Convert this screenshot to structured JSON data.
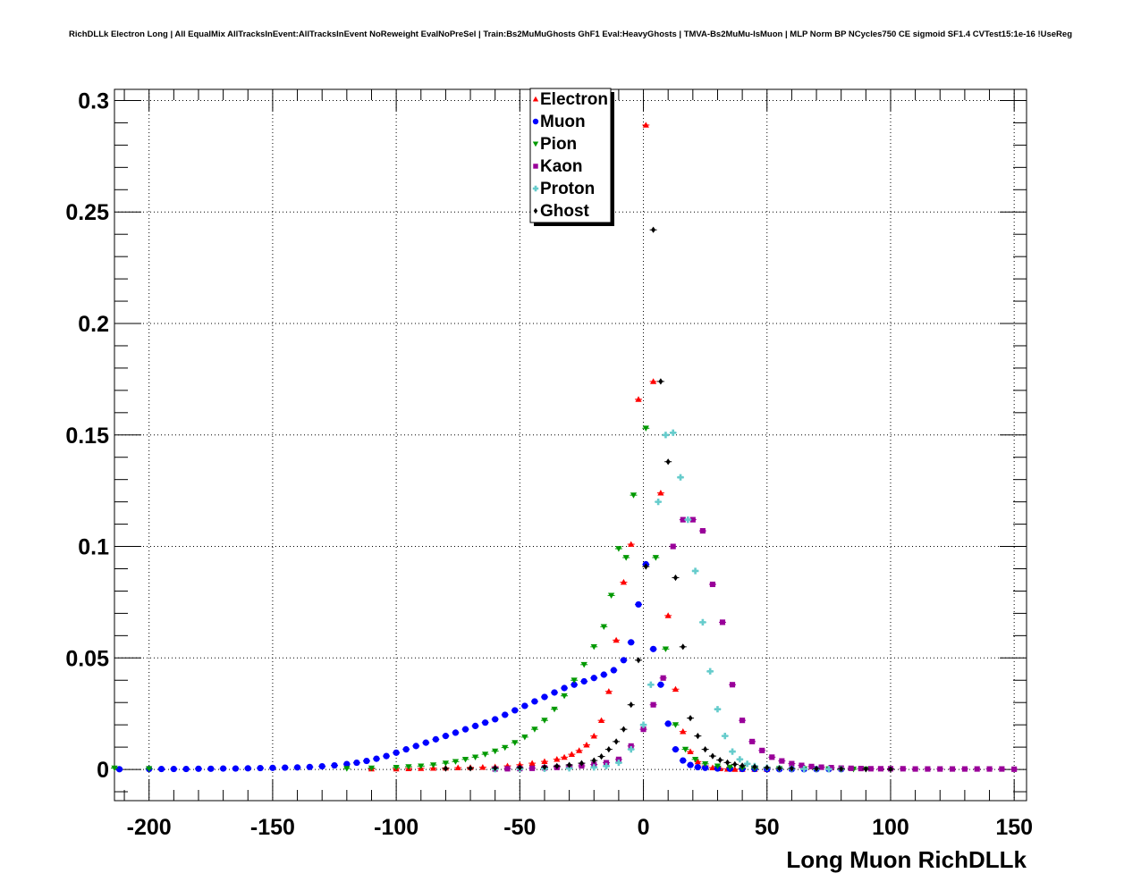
{
  "chart_data": {
    "type": "scatter",
    "title": "RichDLLk Electron Long | All EqualMix AllTracksInEvent:AllTracksInEvent NoReweight EvalNoPreSel | Train:Bs2MuMuGhosts GhF1 Eval:HeavyGhosts | TMVA-Bs2MuMu-IsMuon | MLP Norm BP NCycles750 CE sigmoid SF1.4 CVTest15:1e-16 !UseReg",
    "xlabel": "Long Muon RichDLLk",
    "ylabel": "",
    "xlim": [
      -214,
      155
    ],
    "ylim": [
      -0.014,
      0.305
    ],
    "grid": true,
    "legend_position": "top-center",
    "x_ticks": [
      -200,
      -150,
      -100,
      -50,
      0,
      50,
      100,
      150
    ],
    "x_tick_labels": [
      "-200",
      "-150",
      "-100",
      "-50",
      "0",
      "50",
      "100",
      "150"
    ],
    "y_ticks": [
      0,
      0.05,
      0.1,
      0.15,
      0.2,
      0.25,
      0.3
    ],
    "y_tick_labels": [
      "0",
      "0.05",
      "0.1",
      "0.15",
      "0.2",
      "0.25",
      "0.3"
    ],
    "series": [
      {
        "name": "Electron",
        "color": "#ff0000",
        "marker": "triangle-up",
        "x": [
          -110,
          -100,
          -95,
          -90,
          -85,
          -80,
          -75,
          -70,
          -65,
          -60,
          -55,
          -50,
          -45,
          -40,
          -35,
          -32,
          -29,
          -26,
          -23,
          -20,
          -17,
          -14,
          -11,
          -8,
          -5,
          -2,
          1,
          4,
          7,
          10,
          13,
          16,
          19,
          22,
          25,
          28,
          31,
          34,
          37,
          40,
          45,
          50
        ],
        "y": [
          0.0003,
          0.0003,
          0.0004,
          0.0005,
          0.0006,
          0.0007,
          0.0008,
          0.0009,
          0.001,
          0.0012,
          0.0016,
          0.0021,
          0.0028,
          0.0036,
          0.0046,
          0.0055,
          0.0068,
          0.0085,
          0.011,
          0.015,
          0.022,
          0.035,
          0.058,
          0.084,
          0.101,
          0.166,
          0.289,
          0.174,
          0.124,
          0.069,
          0.036,
          0.017,
          0.008,
          0.0035,
          0.0016,
          0.0008,
          0.0004,
          0.0002,
          0.0001,
          0.0001,
          0.0001,
          0.0001
        ]
      },
      {
        "name": "Muon",
        "color": "#0000ff",
        "marker": "circle",
        "x": [
          -212,
          -200,
          -195,
          -190,
          -185,
          -180,
          -175,
          -170,
          -165,
          -160,
          -155,
          -150,
          -145,
          -140,
          -135,
          -130,
          -125,
          -120,
          -116,
          -112,
          -108,
          -104,
          -100,
          -96,
          -92,
          -88,
          -84,
          -80,
          -76,
          -72,
          -68,
          -64,
          -60,
          -56,
          -52,
          -48,
          -44,
          -40,
          -36,
          -32,
          -28,
          -24,
          -20,
          -16,
          -12,
          -8,
          -5,
          -2,
          1,
          4,
          7,
          10,
          13,
          16,
          19,
          22,
          25,
          30,
          35,
          40,
          45,
          50,
          55,
          60,
          65,
          70,
          75,
          80
        ],
        "y": [
          0.0001,
          0.0002,
          0.0002,
          0.0002,
          0.0002,
          0.0003,
          0.0003,
          0.0004,
          0.0004,
          0.0005,
          0.0006,
          0.0007,
          0.0008,
          0.0009,
          0.0011,
          0.0014,
          0.0018,
          0.0024,
          0.003,
          0.0038,
          0.0048,
          0.006,
          0.0075,
          0.009,
          0.0105,
          0.012,
          0.0135,
          0.015,
          0.0165,
          0.018,
          0.0195,
          0.021,
          0.0225,
          0.0245,
          0.0265,
          0.0285,
          0.0305,
          0.0325,
          0.0345,
          0.0365,
          0.038,
          0.0395,
          0.041,
          0.0425,
          0.0445,
          0.049,
          0.057,
          0.074,
          0.092,
          0.054,
          0.038,
          0.0205,
          0.009,
          0.004,
          0.002,
          0.001,
          0.0007,
          0.0004,
          0.0003,
          0.0002,
          0.0002,
          0.0001,
          0.0001,
          0.0001,
          0.0001,
          0.0001,
          0.0001,
          0.0001
        ]
      },
      {
        "name": "Pion",
        "color": "#009900",
        "marker": "triangle-down",
        "x": [
          -214,
          -200,
          -120,
          -110,
          -100,
          -95,
          -90,
          -85,
          -80,
          -76,
          -72,
          -68,
          -64,
          -60,
          -56,
          -52,
          -48,
          -44,
          -40,
          -36,
          -32,
          -28,
          -24,
          -20,
          -16,
          -13,
          -10,
          -7,
          -4,
          1,
          5,
          9,
          13,
          17,
          21,
          25,
          30,
          35,
          40,
          45,
          55,
          65,
          75,
          85,
          90
        ],
        "y": [
          0.0006,
          0.0003,
          0.0004,
          0.0006,
          0.0009,
          0.0012,
          0.0015,
          0.002,
          0.0028,
          0.0035,
          0.0045,
          0.0055,
          0.0068,
          0.0082,
          0.0098,
          0.012,
          0.0145,
          0.018,
          0.022,
          0.027,
          0.033,
          0.04,
          0.047,
          0.055,
          0.064,
          0.078,
          0.099,
          0.095,
          0.123,
          0.153,
          0.095,
          0.054,
          0.02,
          0.009,
          0.0045,
          0.0025,
          0.0015,
          0.001,
          0.0007,
          0.0005,
          0.0003,
          0.0002,
          0.0002,
          0.0001,
          0.0001
        ]
      },
      {
        "name": "Kaon",
        "color": "#990099",
        "marker": "square",
        "x": [
          -60,
          -55,
          -50,
          -45,
          -40,
          -35,
          -30,
          -25,
          -20,
          -15,
          -10,
          -5,
          0,
          4,
          8,
          12,
          16,
          20,
          24,
          28,
          32,
          36,
          40,
          44,
          48,
          52,
          56,
          60,
          64,
          68,
          72,
          76,
          80,
          84,
          88,
          92,
          96,
          100,
          105,
          110,
          115,
          120,
          125,
          130,
          135,
          140,
          145,
          150
        ],
        "y": [
          0.0002,
          0.0003,
          0.0004,
          0.0005,
          0.0007,
          0.0009,
          0.0012,
          0.0016,
          0.0022,
          0.003,
          0.0045,
          0.0105,
          0.018,
          0.029,
          0.041,
          0.1,
          0.112,
          0.112,
          0.107,
          0.083,
          0.066,
          0.038,
          0.022,
          0.0125,
          0.0085,
          0.0055,
          0.0038,
          0.0026,
          0.0018,
          0.0013,
          0.001,
          0.0008,
          0.0006,
          0.0005,
          0.0004,
          0.0003,
          0.0003,
          0.0003,
          0.0003,
          0.0002,
          0.0002,
          0.0002,
          0.0002,
          0.0002,
          0.0002,
          0.0002,
          0.0002,
          0.0001
        ]
      },
      {
        "name": "Proton",
        "color": "#66cccc",
        "marker": "cross",
        "x": [
          -60,
          -50,
          -40,
          -30,
          -20,
          -15,
          -10,
          -5,
          0,
          3,
          6,
          9,
          12,
          15,
          18,
          21,
          24,
          27,
          30,
          33,
          36,
          39,
          42,
          45,
          50,
          55,
          60,
          65,
          70,
          75,
          80
        ],
        "y": [
          0.0001,
          0.0002,
          0.0003,
          0.0005,
          0.0009,
          0.0015,
          0.003,
          0.009,
          0.02,
          0.038,
          0.12,
          0.15,
          0.151,
          0.131,
          0.112,
          0.089,
          0.066,
          0.044,
          0.027,
          0.015,
          0.008,
          0.0045,
          0.0025,
          0.0015,
          0.0008,
          0.0005,
          0.0003,
          0.0002,
          0.0002,
          0.0001,
          0.0001
        ]
      },
      {
        "name": "Ghost",
        "color": "#000000",
        "marker": "diamond",
        "x": [
          -80,
          -70,
          -60,
          -50,
          -40,
          -35,
          -30,
          -25,
          -20,
          -17,
          -14,
          -11,
          -8,
          -5,
          -2,
          1,
          4,
          7,
          10,
          13,
          16,
          19,
          22,
          25,
          28,
          31,
          34,
          37,
          40,
          45,
          50,
          55,
          60,
          70,
          80,
          90,
          100
        ],
        "y": [
          0.0004,
          0.0005,
          0.0006,
          0.0008,
          0.0011,
          0.0015,
          0.002,
          0.0028,
          0.004,
          0.0058,
          0.009,
          0.0125,
          0.018,
          0.029,
          0.049,
          0.091,
          0.242,
          0.174,
          0.138,
          0.086,
          0.055,
          0.023,
          0.015,
          0.009,
          0.006,
          0.0042,
          0.0031,
          0.0023,
          0.0017,
          0.0012,
          0.0008,
          0.0005,
          0.0004,
          0.0003,
          0.0002,
          0.0001,
          0.0001
        ]
      }
    ]
  }
}
